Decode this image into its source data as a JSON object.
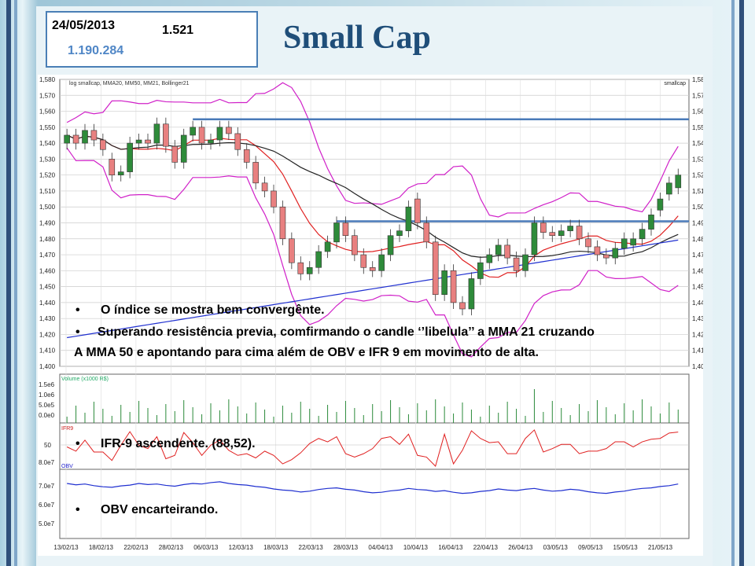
{
  "header": {
    "date": "24/05/2013",
    "index_value": "1.521",
    "volume": "1.190.284",
    "title": "Small Cap"
  },
  "chart_data": {
    "type": "candlestick",
    "legend_text": "log smallcap, MMA20, MM50, MM21, Bollinger21",
    "right_label": "smallcap",
    "price_axis": {
      "ticks": [
        "1,580",
        "1,570",
        "1,560",
        "1,550",
        "1,540",
        "1,530",
        "1,520",
        "1,510",
        "1,500",
        "1,490",
        "1,480",
        "1,470",
        "1,460",
        "1,450",
        "1,440",
        "1,430",
        "1,420",
        "1,410",
        "1,400"
      ],
      "ylim": [
        1400,
        1580
      ]
    },
    "x_labels": [
      "13/02/13",
      "18/02/13",
      "22/02/13",
      "28/02/13",
      "06/03/13",
      "12/03/13",
      "18/03/13",
      "22/03/13",
      "28/03/13",
      "04/04/13",
      "10/04/13",
      "16/04/13",
      "22/04/13",
      "26/04/13",
      "03/05/13",
      "09/05/13",
      "15/05/13",
      "21/05/13"
    ],
    "closes": [
      1545,
      1540,
      1548,
      1542,
      1536,
      1520,
      1522,
      1540,
      1542,
      1540,
      1552,
      1538,
      1528,
      1545,
      1550,
      1540,
      1542,
      1550,
      1546,
      1536,
      1528,
      1515,
      1510,
      1500,
      1480,
      1465,
      1458,
      1462,
      1472,
      1478,
      1490,
      1482,
      1470,
      1462,
      1460,
      1470,
      1482,
      1485,
      1500,
      1490,
      1478,
      1445,
      1460,
      1440,
      1436,
      1455,
      1465,
      1470,
      1476,
      1468,
      1460,
      1470,
      1490,
      1484,
      1482,
      1485,
      1488,
      1480,
      1475,
      1470,
      1468,
      1474,
      1480,
      1480,
      1486,
      1495,
      1505,
      1515,
      1520
    ],
    "opens": [
      1540,
      1545,
      1540,
      1548,
      1542,
      1530,
      1520,
      1522,
      1540,
      1542,
      1540,
      1552,
      1538,
      1528,
      1545,
      1550,
      1540,
      1542,
      1550,
      1546,
      1536,
      1528,
      1515,
      1510,
      1500,
      1480,
      1465,
      1458,
      1462,
      1472,
      1478,
      1490,
      1482,
      1470,
      1462,
      1460,
      1470,
      1482,
      1485,
      1505,
      1490,
      1478,
      1445,
      1460,
      1440,
      1436,
      1455,
      1465,
      1470,
      1476,
      1468,
      1460,
      1470,
      1490,
      1484,
      1482,
      1485,
      1488,
      1480,
      1475,
      1470,
      1468,
      1474,
      1476,
      1480,
      1486,
      1498,
      1508,
      1512
    ],
    "overlay_series": [
      {
        "name": "MMA20"
      },
      {
        "name": "MM50"
      },
      {
        "name": "MM21"
      },
      {
        "name": "Bollinger21"
      }
    ],
    "resistance_levels": [
      1555,
      1491
    ],
    "volume_panel": {
      "label": "Volume (x1000 R$)",
      "ticks": [
        "1.5e6",
        "1.0e6",
        "5.0e5",
        "0.0e0"
      ]
    },
    "ifr_panel": {
      "label": "IFR9",
      "ticks": [
        "50"
      ],
      "last_value": 88.52
    },
    "obv_panel": {
      "label": "OBV",
      "ticks": [
        "8.0e7",
        "7.0e7",
        "6.0e7",
        "5.0e7"
      ]
    },
    "grid": true
  },
  "notes": {
    "bullet1": "O índice se mostra bem convergênte.",
    "bullet2": "Superando resistência previa, comfirmando o candle ‘’libelula’’ a MMA 21 cruzando",
    "bullet2b": "A MMA 50 e apontando para cima além de OBV e IFR 9 em movimento de alta.",
    "bullet3": "IFR-9 ascendente. (88,52).",
    "bullet4": "OBV encarteirando."
  },
  "colors": {
    "accent": "#1f4e79",
    "up": "#2e8b3a",
    "down": "#e88080",
    "bollinger": "#d020c8",
    "ma_red": "#e02020",
    "ma_blue": "#2030d0",
    "resistance": "#4a7ab8"
  }
}
